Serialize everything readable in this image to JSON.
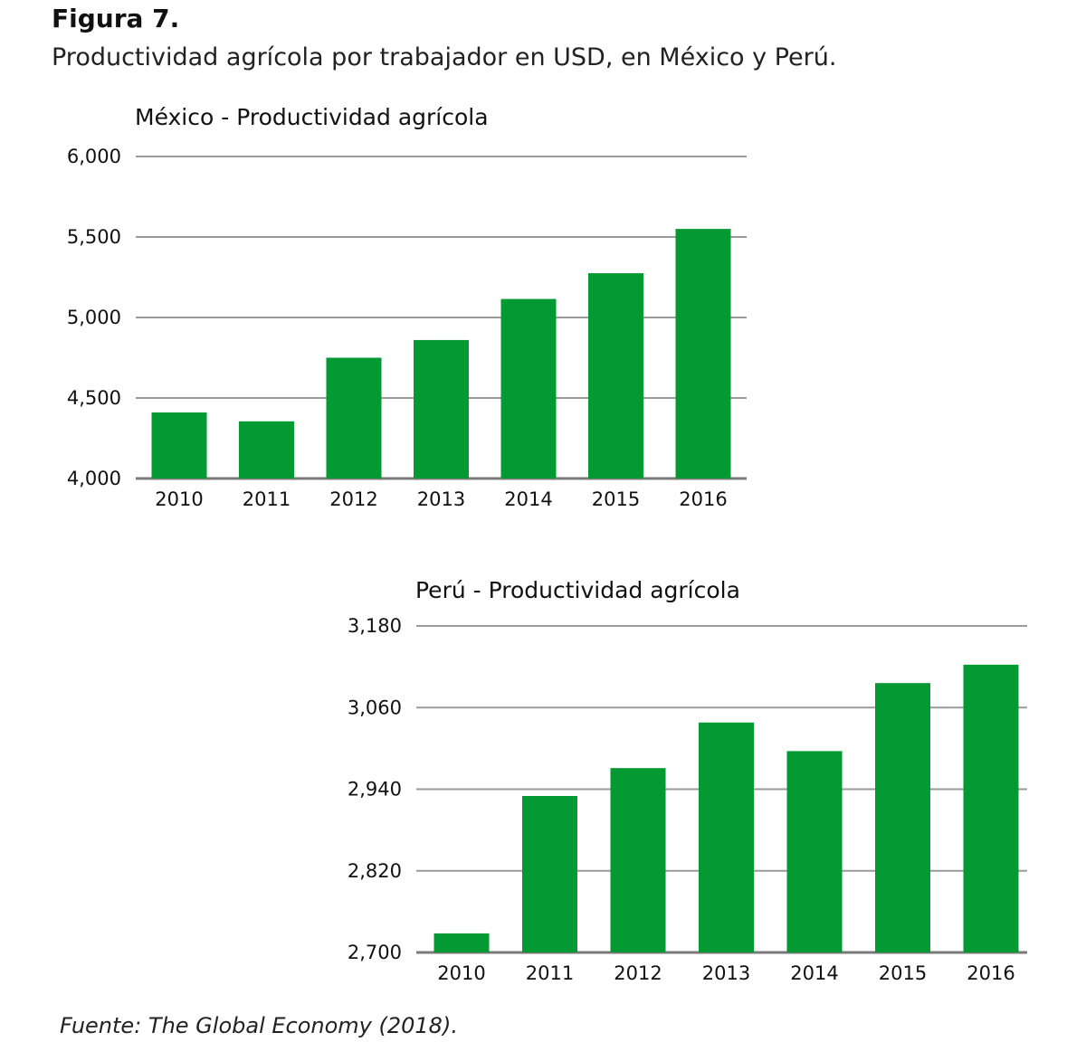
{
  "figure": {
    "label": "Figura 7.",
    "caption": "Productividad agrícola por trabajador en USD, en México y Perú.",
    "source": "Fuente: The Global Economy (2018)."
  },
  "colors": {
    "bar": "#039933",
    "grid": "#9a9a9a",
    "axis": "#7a7a7a"
  },
  "chart_data": [
    {
      "type": "bar",
      "title": "México - Productividad agrícola",
      "categories": [
        "2010",
        "2011",
        "2012",
        "2013",
        "2014",
        "2015",
        "2016"
      ],
      "values": [
        4410,
        4355,
        4750,
        4860,
        5115,
        5275,
        5550
      ],
      "yticks": [
        4000,
        4500,
        5000,
        5500,
        6000
      ],
      "ytick_labels": [
        "4,000",
        "4,500",
        "5,000",
        "5,500",
        "6,000"
      ],
      "ylim": [
        4000,
        6000
      ],
      "grid": true,
      "legend": "none"
    },
    {
      "type": "bar",
      "title": "Perú - Productividad agrícola",
      "categories": [
        "2010",
        "2011",
        "2012",
        "2013",
        "2014",
        "2015",
        "2016"
      ],
      "values": [
        2728,
        2930,
        2971,
        3038,
        2996,
        3096,
        3123
      ],
      "yticks": [
        2700,
        2820,
        2940,
        3060,
        3180
      ],
      "ytick_labels": [
        "2,700",
        "2,820",
        "2,940",
        "3,060",
        "3,180"
      ],
      "ylim": [
        2700,
        3180
      ],
      "grid": true,
      "legend": "none"
    }
  ]
}
